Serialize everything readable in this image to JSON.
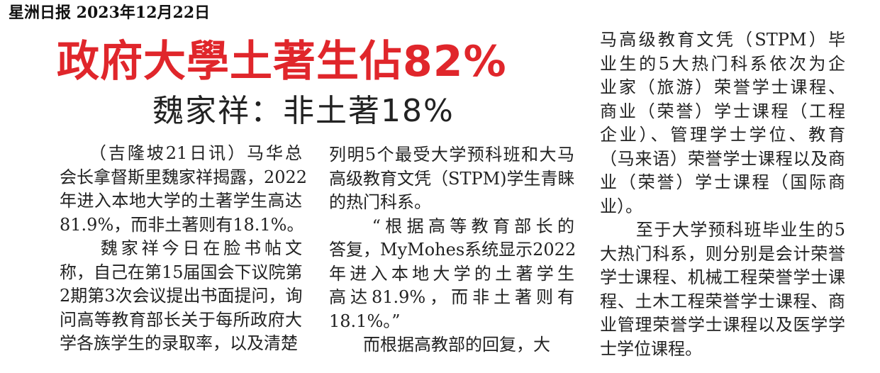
{
  "masthead": "星洲日报 2023年12月22日",
  "headline": "政府大學土著生佔82%",
  "subheadline": "魏家祥：非土著18%",
  "columns": [
    {
      "lines": [
        "　　（吉隆坡21日讯）马华总",
        "会长拿督斯里魏家祥揭露，2022",
        "年进入本地大学的土著学生高达",
        "81.9%，而非土著则有18.1%。",
        "　　魏家祥今日在脸书帖文",
        "称，自己在第15届国会下议院第",
        "2期第3次会议提出书面提问，询",
        "问高等教育部长关于每所政府大",
        "学各族学生的录取率，以及清楚"
      ]
    },
    {
      "lines": [
        "列明5个最受大学预科班和大马",
        "高级教育文凭（STPM)学生青睐",
        "的热门科系。",
        "　　“根据高等教育部长的",
        "答复，MyMohes系统显示2022",
        "年进入本地大学的土著学生",
        "高达81.9%，而非土著则有",
        "18.1%。”",
        "　　而根据高教部的回复，大"
      ]
    },
    {
      "lines": [
        "马高级教育文凭（STPM）毕",
        "业生的5大热门科系依次为企",
        "业家（旅游）荣誉学士课程、",
        "商业（荣誉）学士课程（工程",
        "企业）、管理学士学位、教育",
        "（马来语）荣誉学士课程以及商",
        "业（荣誉）学士课程（国际商",
        "业）。",
        "　　至于大学预科班毕业生的5",
        "大热门科系，则分别是会计荣誉",
        "学士课程、机械工程荣誉学士课",
        "程、土木工程荣誉学士课程、商",
        "业管理荣誉学士课程以及医学学",
        "士学位课程。"
      ]
    }
  ],
  "colors": {
    "headline": "#e0262b",
    "text": "#222222"
  }
}
